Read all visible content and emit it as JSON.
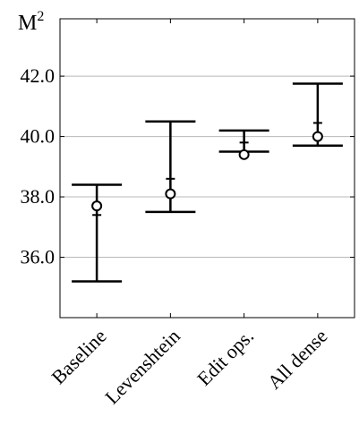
{
  "chart_data": {
    "type": "errorbar",
    "title": "",
    "ylabel": "M",
    "ylabel_superscript": "2",
    "xlabel": "",
    "categories": [
      "Baseline",
      "Levenshtein",
      "Edit ops.",
      "All dense"
    ],
    "series": [
      {
        "points": [
          {
            "category": "Baseline",
            "mean": 37.7,
            "lower": 35.2,
            "upper": 38.4,
            "median": 37.4
          },
          {
            "category": "Levenshtein",
            "mean": 38.1,
            "lower": 37.5,
            "upper": 40.5,
            "median": 38.6
          },
          {
            "category": "Edit ops.",
            "mean": 39.4,
            "lower": 39.5,
            "upper": 40.2,
            "median": 39.8
          },
          {
            "category": "All dense",
            "mean": 40.0,
            "lower": 39.7,
            "upper": 41.75,
            "median": 40.45
          }
        ]
      }
    ],
    "yticks": [
      36.0,
      38.0,
      40.0,
      42.0
    ],
    "ytick_labels": [
      "36.0",
      "38.0",
      "40.0",
      "42.0"
    ],
    "ylim": [
      34.0,
      43.9
    ],
    "grid": "horizontal",
    "xtick_label_rotation": -45
  }
}
